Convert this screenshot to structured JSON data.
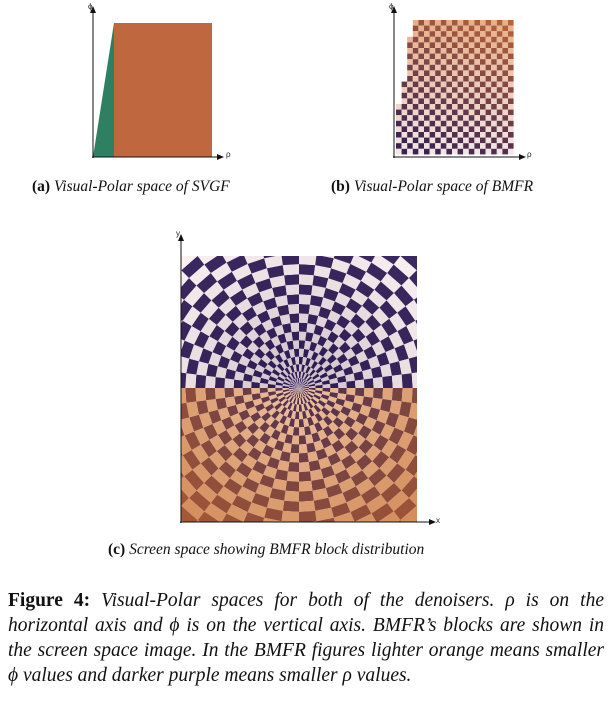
{
  "colors": {
    "svgf_green": "#2f7f63",
    "svgf_orange": "#bf673f",
    "light_orange": "#f2c9a8",
    "dark_orange": "#b35c33",
    "dark_purple": "#2a1a4e",
    "light_purple": "#ffffff"
  },
  "panel_a": {
    "phi_label": "ϕ",
    "rho_label": "ρ",
    "caption_tag": "(a)",
    "caption_text": " Visual-Polar space of SVGF"
  },
  "panel_b": {
    "phi_label": "ϕ",
    "rho_label": "ρ",
    "caption_tag": "(b)",
    "caption_text": " Visual-Polar space of BMFR"
  },
  "panel_c": {
    "y_label": "y",
    "x_label": "x",
    "caption_tag": "(c)",
    "caption_text": " Screen space showing BMFR block distribution"
  },
  "figure_caption": {
    "label": "Figure 4:",
    "text": " Visual-Polar spaces for both of the denoisers. ρ is on the horizontal axis and ϕ is on the vertical axis. BMFR’s blocks are shown in the screen space image. In the BMFR figures lighter orange means smaller ϕ values and darker purple means smaller ρ values."
  }
}
